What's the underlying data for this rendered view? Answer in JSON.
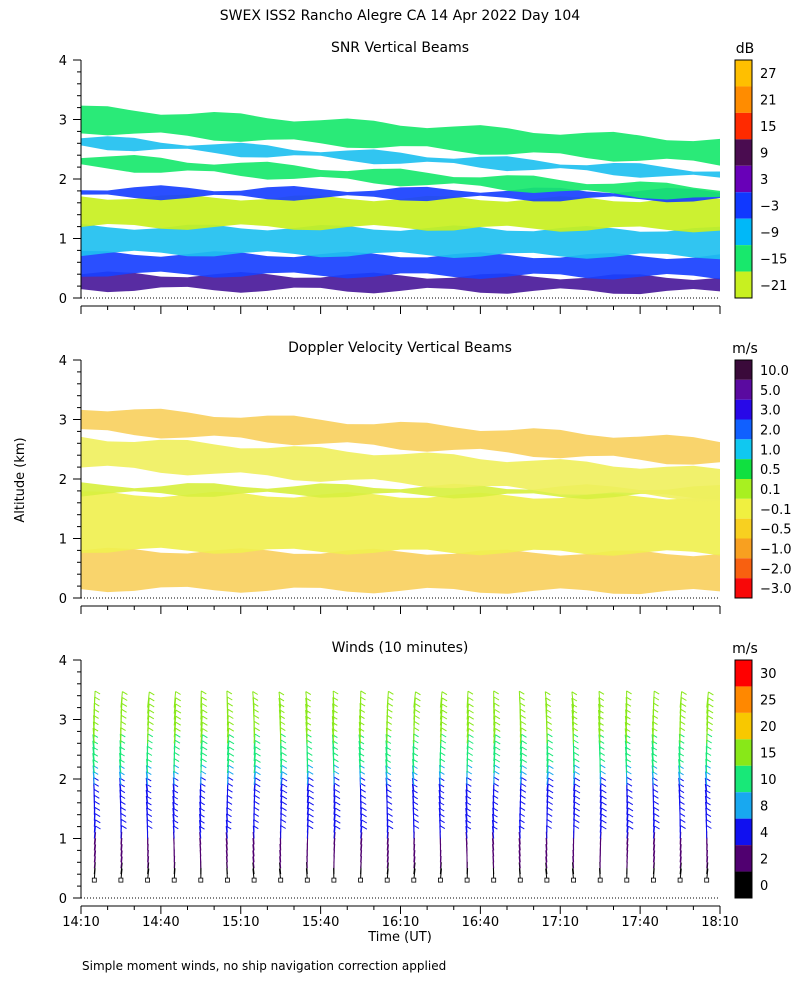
{
  "figure_title": "SWEX ISS2 Rancho Alegre CA  14 Apr 2022 Day 104",
  "y_axis_label": "Altitude (km)",
  "x_axis_label": "Time (UT)",
  "footnote": "Simple moment winds, no ship navigation correction applied",
  "chart_data": [
    {
      "type": "heatmap",
      "title": "SNR Vertical Beams",
      "xlabel": "",
      "ylabel": "Altitude (km)",
      "x_range_minutes": [
        0,
        240
      ],
      "ylim": [
        0,
        4
      ],
      "y_ticks": [
        "0",
        "1",
        "2",
        "3",
        "4"
      ],
      "colorbar": {
        "unit": "dB",
        "labels": [
          "27",
          "21",
          "15",
          "9",
          "3",
          "−3",
          "−9",
          "−15",
          "−21"
        ],
        "colors": [
          "#ffbf00",
          "#ff8c00",
          "#ff2a00",
          "#4a0c50",
          "#6800b8",
          "#1038ff",
          "#00b8f8",
          "#18e86c",
          "#c8f020"
        ]
      },
      "layers": [
        {
          "bottom": 0.15,
          "top": 0.4,
          "level": "3",
          "color": "#4a1a9a"
        },
        {
          "bottom": 0.4,
          "top": 0.75,
          "level": "-3",
          "color": "#1840ff"
        },
        {
          "bottom": 0.75,
          "top": 1.2,
          "level": "-9",
          "color": "#20c0f0"
        },
        {
          "bottom": 1.2,
          "top": 1.7,
          "level": "-21",
          "color": "#c8f020"
        },
        {
          "bottom": 1.7,
          "top": 1.85,
          "level": "-3",
          "color": "#1840ff"
        },
        {
          "bottom": 2.2,
          "top": 2.4,
          "level": "-15",
          "color": "#18e86c"
        },
        {
          "bottom": 2.55,
          "top": 2.7,
          "level": "-9",
          "color": "#20c0f0"
        },
        {
          "bottom": 2.8,
          "top": 3.2,
          "level": "-15",
          "color": "#18e86c"
        }
      ]
    },
    {
      "type": "heatmap",
      "title": "Doppler Velocity Vertical Beams",
      "xlabel": "",
      "ylabel": "Altitude (km)",
      "x_range_minutes": [
        0,
        240
      ],
      "ylim": [
        0,
        4
      ],
      "y_ticks": [
        "0",
        "1",
        "2",
        "3",
        "4"
      ],
      "colorbar": {
        "unit": "m/s",
        "labels": [
          "10.0",
          "5.0",
          "3.0",
          "2.0",
          "1.0",
          "0.5",
          "0.1",
          "−0.1",
          "−0.5",
          "−1.0",
          "−2.0",
          "−3.0"
        ],
        "colors": [
          "#3a0a3a",
          "#5a0aa0",
          "#2808e8",
          "#1060ff",
          "#10c8f0",
          "#10e040",
          "#a8f020",
          "#f0f040",
          "#f8d020",
          "#f8a020",
          "#f86010",
          "#f80808"
        ]
      },
      "layers": [
        {
          "bottom": 0.15,
          "top": 0.8,
          "level": "-0.5",
          "color": "#f8d060"
        },
        {
          "bottom": 0.8,
          "top": 1.75,
          "level": "-0.1",
          "color": "#f0f050"
        },
        {
          "bottom": 1.75,
          "top": 1.9,
          "level": "0.1",
          "color": "#d8f040"
        },
        {
          "bottom": 2.2,
          "top": 2.7,
          "level": "-0.1",
          "color": "#f0f060"
        },
        {
          "bottom": 2.8,
          "top": 3.2,
          "level": "-0.5",
          "color": "#f8d060"
        }
      ]
    },
    {
      "type": "wind_barbs",
      "title": "Winds (10 minutes)",
      "xlabel": "Time (UT)",
      "ylabel": "Altitude (km)",
      "x_range_minutes": [
        0,
        240
      ],
      "ylim": [
        0,
        4
      ],
      "x_ticks": [
        "14:10",
        "14:40",
        "15:10",
        "15:40",
        "16:10",
        "16:40",
        "17:10",
        "17:40",
        "18:10"
      ],
      "y_ticks": [
        "0",
        "1",
        "2",
        "3",
        "4"
      ],
      "profile_times": [
        "14:10",
        "14:20",
        "14:30",
        "14:40",
        "14:50",
        "15:00",
        "15:10",
        "15:20",
        "15:30",
        "15:40",
        "15:50",
        "16:00",
        "16:10",
        "16:20",
        "16:30",
        "16:40",
        "16:50",
        "17:00",
        "17:10",
        "17:20",
        "17:30",
        "17:40",
        "17:50",
        "18:00"
      ],
      "colorbar": {
        "unit": "m/s",
        "labels": [
          "30",
          "25",
          "20",
          "15",
          "10",
          "8",
          "4",
          "2",
          "0"
        ],
        "colors": [
          "#ff0000",
          "#ff8800",
          "#f8c800",
          "#88e818",
          "#18e878",
          "#18a8f0",
          "#1010f0",
          "#500070",
          "#000000"
        ]
      },
      "speed_profile": [
        {
          "altitude_km": 0.3,
          "speed_ms": 1
        },
        {
          "altitude_km": 0.7,
          "speed_ms": 3
        },
        {
          "altitude_km": 1.2,
          "speed_ms": 5
        },
        {
          "altitude_km": 1.8,
          "speed_ms": 7
        },
        {
          "altitude_km": 2.2,
          "speed_ms": 11
        },
        {
          "altitude_km": 2.7,
          "speed_ms": 16
        },
        {
          "altitude_km": 3.2,
          "speed_ms": 19
        }
      ]
    }
  ]
}
